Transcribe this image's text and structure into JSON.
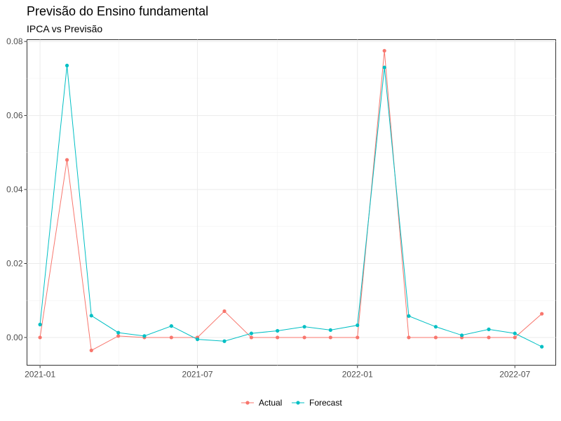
{
  "chart_data": {
    "type": "line",
    "title": "Previsão do Ensino fundamental",
    "subtitle": "IPCA vs Previsão",
    "xlabel": "",
    "ylabel": "",
    "x": [
      "2021-01-01",
      "2021-02-01",
      "2021-03-01",
      "2021-04-01",
      "2021-05-01",
      "2021-06-01",
      "2021-07-01",
      "2021-08-01",
      "2021-09-01",
      "2021-10-01",
      "2021-11-01",
      "2021-12-01",
      "2022-01-01",
      "2022-02-01",
      "2022-03-01",
      "2022-04-01",
      "2022-05-01",
      "2022-06-01",
      "2022-07-01",
      "2022-08-01"
    ],
    "xlim": [
      "2020-12-17",
      "2022-08-17"
    ],
    "ylim": [
      -0.0075,
      0.0805
    ],
    "x_ticks": [
      {
        "date": "2021-01-01",
        "label": "2021-01"
      },
      {
        "date": "2021-07-01",
        "label": "2021-07"
      },
      {
        "date": "2022-01-01",
        "label": "2022-01"
      },
      {
        "date": "2022-07-01",
        "label": "2022-07"
      }
    ],
    "y_ticks": [
      {
        "value": 0.0,
        "label": "0.00"
      },
      {
        "value": 0.02,
        "label": "0.02"
      },
      {
        "value": 0.04,
        "label": "0.04"
      },
      {
        "value": 0.06,
        "label": "0.06"
      },
      {
        "value": 0.08,
        "label": "0.08"
      }
    ],
    "series": [
      {
        "name": "Actual",
        "color": "#F8766D",
        "values": [
          0.0,
          0.048,
          -0.0035,
          0.0004,
          0.0,
          0.0,
          0.0,
          0.0071,
          0.0,
          0.0,
          0.0,
          0.0,
          0.0,
          0.0775,
          0.0,
          0.0,
          0.0,
          0.0,
          0.0,
          0.0064
        ]
      },
      {
        "name": "Forecast",
        "color": "#00BFC4",
        "values": [
          0.0035,
          0.0735,
          0.0059,
          0.0013,
          0.0004,
          0.0031,
          -0.0005,
          -0.001,
          0.0011,
          0.0018,
          0.0029,
          0.002,
          0.0033,
          0.073,
          0.0058,
          0.0029,
          0.0006,
          0.0022,
          0.0011,
          -0.0025
        ]
      }
    ],
    "grid": true,
    "legend_position": "bottom"
  }
}
